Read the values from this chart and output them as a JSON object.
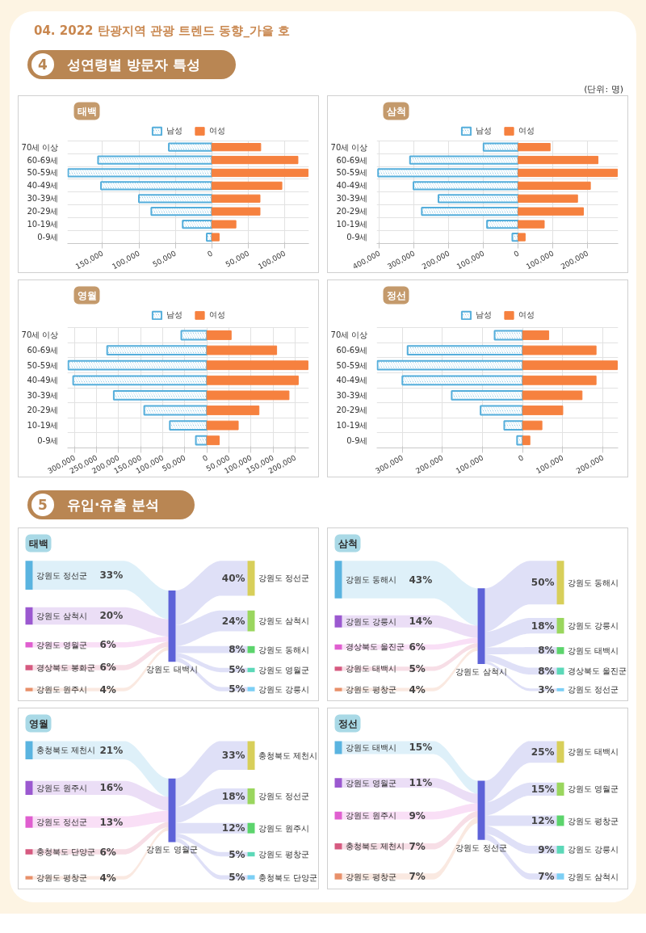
{
  "chart_data": [
    {
      "type": "bar",
      "orientation": "horizontal",
      "stacked": true,
      "title": "태백",
      "annotations": [
        "04. 2022 탄광지역 관광 트렌드 동향_가을 호",
        "4 성연령별 방문자 특성",
        "(단위: 명)"
      ],
      "categories": [
        "70세 이상",
        "60-69세",
        "50-59세",
        "40-49세",
        "30-39세",
        "20-29세",
        "10-19세",
        "0-9세"
      ],
      "series": [
        {
          "name": "남성",
          "color": "#55aedb",
          "values": [
            -59000,
            -156000,
            -197000,
            -152000,
            -100000,
            -83000,
            -40000,
            -7000
          ]
        },
        {
          "name": "여성",
          "color": "#f6813f",
          "values": [
            67000,
            118000,
            132000,
            96000,
            66000,
            66000,
            33000,
            10000
          ]
        }
      ],
      "xlim": [
        -198000,
        133000
      ],
      "xticks": [
        {
          "value": -150000,
          "label": "150,000"
        },
        {
          "value": -100000,
          "label": "100,000"
        },
        {
          "value": -50000,
          "label": "50,000"
        },
        0,
        {
          "value": 50000,
          "label": "50,000"
        },
        {
          "value": 100000,
          "label": "100,000"
        }
      ],
      "grid": true,
      "legend": "top"
    },
    {
      "type": "bar",
      "orientation": "horizontal",
      "stacked": true,
      "title": "삼척",
      "categories": [
        "70세 이상",
        "60-69세",
        "50-59세",
        "40-49세",
        "30-39세",
        "20-29세",
        "10-19세",
        "0-9세"
      ],
      "series": [
        {
          "name": "남성",
          "color": "#55aedb",
          "values": [
            -100000,
            -312000,
            -404000,
            -302000,
            -230000,
            -278000,
            -90000,
            -17000
          ]
        },
        {
          "name": "여성",
          "color": "#f6813f",
          "values": [
            92000,
            230000,
            286000,
            208000,
            171000,
            188000,
            75000,
            20000
          ]
        }
      ],
      "xlim": [
        -408000,
        288000
      ],
      "xticks": [
        {
          "value": -400000,
          "label": "400,000"
        },
        {
          "value": -300000,
          "label": "300,000"
        },
        {
          "value": -200000,
          "label": "200,000"
        },
        {
          "value": -100000,
          "label": "100,000"
        },
        0,
        {
          "value": 100000,
          "label": "100,000"
        },
        {
          "value": 200000,
          "label": "200,000"
        }
      ],
      "grid": true,
      "legend": "top"
    },
    {
      "type": "bar",
      "orientation": "horizontal",
      "stacked": true,
      "title": "영월",
      "categories": [
        "70세 이상",
        "60-69세",
        "50-59세",
        "40-49세",
        "30-39세",
        "20-29세",
        "10-19세",
        "0-9세"
      ],
      "series": [
        {
          "name": "남성",
          "color": "#55aedb",
          "values": [
            -58000,
            -226000,
            -314000,
            -303000,
            -211000,
            -142000,
            -84000,
            -25000
          ]
        },
        {
          "name": "여성",
          "color": "#f6813f",
          "values": [
            55000,
            158000,
            229000,
            207000,
            186000,
            118000,
            71000,
            28000
          ]
        }
      ],
      "xlim": [
        -316000,
        231000
      ],
      "xticks": [
        {
          "value": -300000,
          "label": "300,000"
        },
        {
          "value": -250000,
          "label": "250,000"
        },
        {
          "value": -200000,
          "label": "200,000"
        },
        {
          "value": -150000,
          "label": "150,000"
        },
        {
          "value": -100000,
          "label": "100,000"
        },
        {
          "value": -50000,
          "label": "50,000"
        },
        0,
        {
          "value": 50000,
          "label": "50,000"
        },
        {
          "value": 100000,
          "label": "100,000"
        },
        {
          "value": 150000,
          "label": "150,000"
        },
        {
          "value": 200000,
          "label": "200,000"
        }
      ],
      "grid": true,
      "legend": "top"
    },
    {
      "type": "bar",
      "orientation": "horizontal",
      "stacked": true,
      "title": "정선",
      "categories": [
        "70세 이상",
        "60-69세",
        "50-59세",
        "40-49세",
        "30-39세",
        "20-29세",
        "10-19세",
        "0-9세"
      ],
      "series": [
        {
          "name": "남성",
          "color": "#55aedb",
          "values": [
            -70000,
            -287000,
            -362000,
            -300000,
            -177000,
            -105000,
            -46000,
            -14000
          ]
        },
        {
          "name": "여성",
          "color": "#f6813f",
          "values": [
            65000,
            183000,
            236000,
            183000,
            148000,
            100000,
            48000,
            18000
          ]
        }
      ],
      "xlim": [
        -364000,
        238000
      ],
      "xticks": [
        {
          "value": -300000,
          "label": "300,000"
        },
        {
          "value": -200000,
          "label": "200,000"
        },
        {
          "value": -100000,
          "label": "100,000"
        },
        0,
        {
          "value": 100000,
          "label": "100,000"
        },
        {
          "value": 200000,
          "label": "200,000"
        }
      ],
      "grid": true,
      "legend": "top"
    },
    {
      "type": "other",
      "title": "태백",
      "annotations": [
        "5 유입·유출 분석"
      ],
      "categories": [
        "강원도 정선군",
        "강원도 삼척시",
        "강원도 영월군",
        "경상북도 봉화군",
        "강원도 원주시",
        "강원도 태백시",
        "강원도 정선군",
        "강원도 삼척시",
        "강원도 동해시",
        "강원도 영월군",
        "강원도 강릉시"
      ],
      "values": [
        33,
        20,
        6,
        6,
        4,
        null,
        40,
        24,
        8,
        5,
        5
      ],
      "value_labels": [
        "33%",
        "20%",
        "6%",
        "6%",
        "4%",
        null,
        "40%",
        "24%",
        "8%",
        "5%",
        "5%"
      ]
    },
    {
      "type": "other",
      "title": "삼척",
      "categories": [
        "강원도 동해시",
        "강원도 강릉시",
        "경상북도 울진군",
        "강원도 태백시",
        "강원도 평창군",
        "강원도 삼척시",
        "강원도 동해시",
        "강원도 강릉시",
        "강원도 태백시",
        "경상북도 울진군",
        "강원도 정선군"
      ],
      "values": [
        43,
        14,
        6,
        5,
        4,
        null,
        50,
        18,
        8,
        8,
        3
      ],
      "value_labels": [
        "43%",
        "14%",
        "6%",
        "5%",
        "4%",
        null,
        "50%",
        "18%",
        "8%",
        "8%",
        "3%"
      ]
    },
    {
      "type": "other",
      "title": "영월",
      "categories": [
        "충청북도 제천시",
        "강원도 원주시",
        "강원도 정선군",
        "충청북도 단양군",
        "강원도 평창군",
        "강원도 영월군",
        "충청북도 제천시",
        "강원도 정선군",
        "강원도 원주시",
        "강원도 평창군",
        "충청북도 단양군"
      ],
      "values": [
        21,
        16,
        13,
        6,
        4,
        null,
        33,
        18,
        12,
        5,
        5
      ],
      "value_labels": [
        "21%",
        "16%",
        "13%",
        "6%",
        "4%",
        null,
        "33%",
        "18%",
        "12%",
        "5%",
        "5%"
      ]
    },
    {
      "type": "other",
      "title": "정선",
      "categories": [
        "강원도 태백시",
        "강원도 영월군",
        "강원도 원주시",
        "충청북도 제천시",
        "강원도 평창군",
        "강원도 정선군",
        "강원도 태백시",
        "강원도 영월군",
        "강원도 평창군",
        "강원도 강릉시",
        "강원도 삼척시"
      ],
      "values": [
        15,
        11,
        9,
        7,
        7,
        null,
        25,
        15,
        12,
        9,
        7
      ],
      "value_labels": [
        "15%",
        "11%",
        "9%",
        "7%",
        "7%",
        null,
        "25%",
        "15%",
        "12%",
        "9%",
        "7%"
      ]
    }
  ]
}
